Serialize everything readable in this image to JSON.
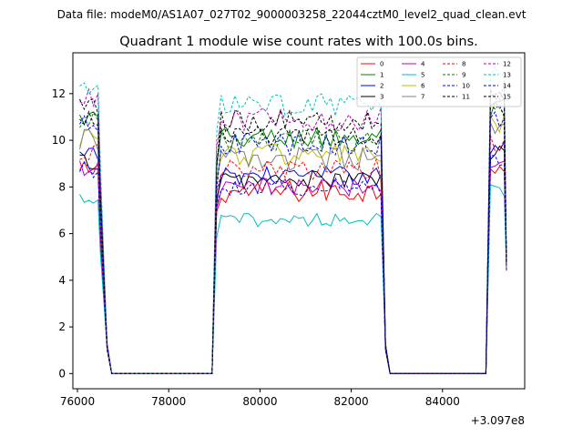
{
  "figure": {
    "suptitle": "Data file: modeM0/AS1A07_027T02_9000003258_22044cztM0_level2_quad_clean.evt"
  },
  "chart_data": {
    "type": "line",
    "title": "Quadrant 1 module wise count rates with 100.0s bins.",
    "xlabel": "",
    "ylabel": "",
    "x_offset_label": "+3.097e8",
    "xlim": [
      75900,
      85800
    ],
    "ylim": [
      -0.65,
      13.75
    ],
    "xticks": [
      76000,
      78000,
      80000,
      82000,
      84000
    ],
    "yticks": [
      0,
      2,
      4,
      6,
      8,
      10,
      12
    ],
    "legend_position": "top-right",
    "segments": [
      [
        76050,
        76450
      ],
      [
        79150,
        82650
      ],
      [
        85050,
        85350
      ]
    ],
    "gaps": [
      [
        76750,
        78950
      ],
      [
        82850,
        84950
      ]
    ],
    "series": [
      {
        "name": "0",
        "color": "#ff0000",
        "style": "solid",
        "level": 7.8,
        "noise": 0.5
      },
      {
        "name": "1",
        "color": "#008000",
        "style": "solid",
        "level": 10.1,
        "noise": 0.5
      },
      {
        "name": "2",
        "color": "#0000ff",
        "style": "solid",
        "level": 8.5,
        "noise": 0.4
      },
      {
        "name": "3",
        "color": "#000000",
        "style": "solid",
        "level": 8.3,
        "noise": 0.4
      },
      {
        "name": "4",
        "color": "#bf00bf",
        "style": "solid",
        "level": 8.0,
        "noise": 0.4
      },
      {
        "name": "5",
        "color": "#00bfbf",
        "style": "solid",
        "level": 6.6,
        "noise": 0.3
      },
      {
        "name": "6",
        "color": "#bfbf00",
        "style": "solid",
        "level": 9.4,
        "noise": 0.5
      },
      {
        "name": "7",
        "color": "#808080",
        "style": "solid",
        "level": 9.2,
        "noise": 0.5
      },
      {
        "name": "8",
        "color": "#ff0000",
        "style": "dashed",
        "level": 8.7,
        "noise": 0.5
      },
      {
        "name": "9",
        "color": "#008000",
        "style": "dashed",
        "level": 10.0,
        "noise": 0.5
      },
      {
        "name": "10",
        "color": "#0000ff",
        "style": "dashed",
        "level": 8.0,
        "noise": 0.4
      },
      {
        "name": "11",
        "color": "#000000",
        "style": "dashed",
        "level": 10.2,
        "noise": 0.4
      },
      {
        "name": "12",
        "color": "#bf00bf",
        "style": "dashed",
        "level": 10.9,
        "noise": 0.5
      },
      {
        "name": "13",
        "color": "#00bfbf",
        "style": "dashed",
        "level": 11.5,
        "noise": 0.5
      },
      {
        "name": "14",
        "color": "#0000ff",
        "style": "dashed",
        "level": 9.8,
        "noise": 0.5
      },
      {
        "name": "15",
        "color": "#000000",
        "style": "dashed",
        "level": 10.8,
        "noise": 0.5
      }
    ]
  }
}
